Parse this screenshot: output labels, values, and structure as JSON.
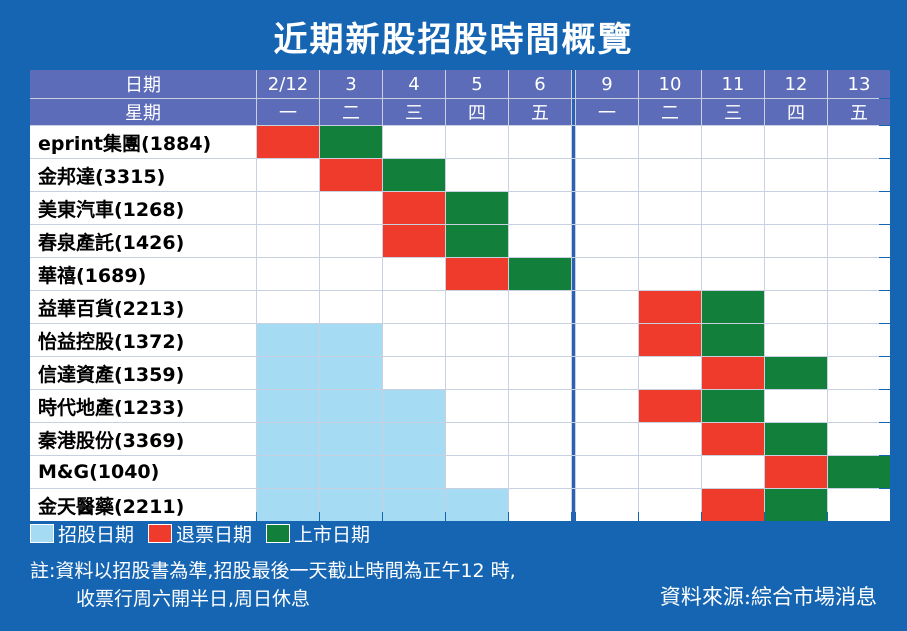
{
  "title": "近期新股招股時間概覽",
  "chart_data": {
    "type": "table",
    "header": {
      "date_label": "日期",
      "weekday_label": "星期",
      "dates": [
        "2/12",
        "3",
        "4",
        "5",
        "6",
        "9",
        "10",
        "11",
        "12",
        "13"
      ],
      "weekdays": [
        "一",
        "二",
        "三",
        "四",
        "五",
        "一",
        "二",
        "三",
        "四",
        "五"
      ]
    },
    "rows": [
      {
        "name": "eprint集團(1884)",
        "cells": [
          "refund",
          "listing",
          "",
          "",
          "",
          "",
          "",
          "",
          "",
          ""
        ]
      },
      {
        "name": "金邦達(3315)",
        "cells": [
          "",
          "refund",
          "listing",
          "",
          "",
          "",
          "",
          "",
          "",
          ""
        ]
      },
      {
        "name": "美東汽車(1268)",
        "cells": [
          "",
          "",
          "refund",
          "listing",
          "",
          "",
          "",
          "",
          "",
          ""
        ]
      },
      {
        "name": "春泉產託(1426)",
        "cells": [
          "",
          "",
          "refund",
          "listing",
          "",
          "",
          "",
          "",
          "",
          ""
        ]
      },
      {
        "name": "華禧(1689)",
        "cells": [
          "",
          "",
          "",
          "refund",
          "listing",
          "",
          "",
          "",
          "",
          ""
        ]
      },
      {
        "name": "益華百貨(2213)",
        "cells": [
          "",
          "",
          "",
          "",
          "",
          "",
          "refund",
          "listing",
          "",
          ""
        ]
      },
      {
        "name": "怡益控股(1372)",
        "cells": [
          "subscription",
          "subscription",
          "",
          "",
          "",
          "",
          "refund",
          "listing",
          "",
          ""
        ]
      },
      {
        "name": "信達資產(1359)",
        "cells": [
          "subscription",
          "subscription",
          "",
          "",
          "",
          "",
          "",
          "refund",
          "listing",
          ""
        ]
      },
      {
        "name": "時代地產(1233)",
        "cells": [
          "subscription",
          "subscription",
          "subscription",
          "",
          "",
          "",
          "refund",
          "listing",
          "",
          ""
        ]
      },
      {
        "name": "秦港股份(3369)",
        "cells": [
          "subscription",
          "subscription",
          "subscription",
          "",
          "",
          "",
          "",
          "refund",
          "listing",
          ""
        ]
      },
      {
        "name": "M&G(1040)",
        "cells": [
          "subscription",
          "subscription",
          "subscription",
          "",
          "",
          "",
          "",
          "",
          "refund",
          "listing"
        ]
      },
      {
        "name": "金天醫藥(2211)",
        "cells": [
          "subscription",
          "subscription",
          "subscription",
          "subscription",
          "",
          "",
          "",
          "refund",
          "listing",
          ""
        ]
      }
    ],
    "legend": [
      {
        "key": "subscription",
        "label": "招股日期",
        "color": "#a6dcf3"
      },
      {
        "key": "refund",
        "label": "退票日期",
        "color": "#ef3b2c"
      },
      {
        "key": "listing",
        "label": "上市日期",
        "color": "#12803a"
      }
    ]
  },
  "notes": {
    "line1": "註:資料以招股書為準,招股最後一天截止時間為正午12 時,",
    "line2": "收票行周六開半日,周日休息"
  },
  "source": "資料來源:綜合市場消息"
}
